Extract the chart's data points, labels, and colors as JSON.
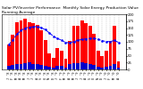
{
  "title": "Solar PV/Inverter Performance  Monthly Solar Energy Production Value Running Average",
  "months": [
    "J '8",
    "F '8",
    "M '8",
    "A '8",
    "M '8",
    "J '8",
    "J '8",
    "A '8",
    "S '8",
    "O '8",
    "N '8",
    "D '8",
    "J '9",
    "F '9",
    "M '9",
    "A '9",
    "M '9",
    "J '9",
    "J '9",
    "A '9",
    "S '9",
    "O '9",
    "N '9",
    "D '9",
    "J '0",
    "F '0",
    "M '0",
    "A '0"
  ],
  "bar_values": [
    90,
    125,
    170,
    178,
    185,
    172,
    168,
    162,
    142,
    105,
    58,
    42,
    78,
    68,
    38,
    102,
    158,
    158,
    178,
    168,
    158,
    128,
    68,
    48,
    68,
    102,
    158,
    28
  ],
  "running_avg": [
    90,
    107,
    128,
    141,
    150,
    153,
    155,
    155,
    151,
    144,
    132,
    120,
    112,
    106,
    97,
    97,
    101,
    105,
    109,
    111,
    113,
    113,
    109,
    104,
    101,
    101,
    105,
    98
  ],
  "bottom_values": [
    12,
    15,
    18,
    20,
    22,
    25,
    20,
    18,
    16,
    13,
    10,
    8,
    12,
    14,
    8,
    18,
    22,
    24,
    25,
    22,
    20,
    16,
    10,
    7,
    10,
    14,
    20,
    6
  ],
  "bar_color": "#FF0000",
  "avg_color": "#0000FF",
  "bottom_color": "#0000CC",
  "bg_color": "#FFFFFF",
  "grid_color": "#BBBBBB",
  "ylim": [
    0,
    200
  ],
  "yticks": [
    0,
    25,
    50,
    75,
    100,
    125,
    150,
    175,
    200
  ],
  "ytick_labels": [
    "0",
    "25",
    "50",
    "75",
    "100",
    "125",
    "150",
    "175",
    "200"
  ],
  "title_fontsize": 3.2,
  "tick_fontsize": 2.5,
  "ytick_fontsize": 2.8
}
